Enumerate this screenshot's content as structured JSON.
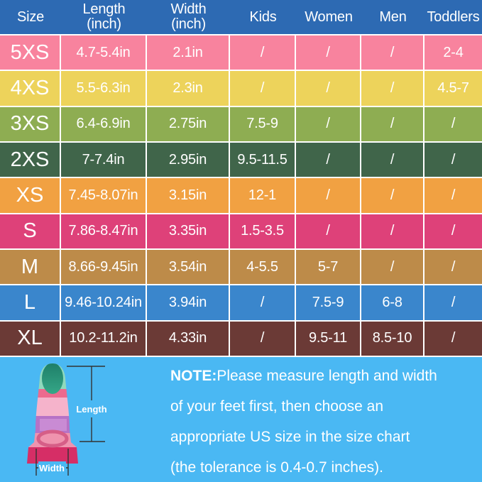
{
  "chart_data": {
    "type": "table",
    "columns": [
      "Size",
      "Length\n(inch)",
      "Width\n(inch)",
      "Kids",
      "Women",
      "Men",
      "Toddlers"
    ],
    "rows": [
      [
        "5XS",
        "4.7-5.4in",
        "2.1in",
        "/",
        "/",
        "/",
        "2-4"
      ],
      [
        "4XS",
        "5.5-6.3in",
        "2.3in",
        "/",
        "/",
        "/",
        "4.5-7"
      ],
      [
        "3XS",
        "6.4-6.9in",
        "2.75in",
        "7.5-9",
        "/",
        "/",
        "/"
      ],
      [
        "2XS",
        "7-7.4in",
        "2.95in",
        "9.5-11.5",
        "/",
        "/",
        "/"
      ],
      [
        "XS",
        "7.45-8.07in",
        "3.15in",
        "12-1",
        "/",
        "/",
        "/"
      ],
      [
        "S",
        "7.86-8.47in",
        "3.35in",
        "1.5-3.5",
        "/",
        "/",
        "/"
      ],
      [
        "M",
        "8.66-9.45in",
        "3.54in",
        "4-5.5",
        "5-7",
        "/",
        "/"
      ],
      [
        "L",
        "9.46-10.24in",
        "3.94in",
        "/",
        "7.5-9",
        "6-8",
        "/"
      ],
      [
        "XL",
        "10.2-11.2in",
        "4.33in",
        "/",
        "9.5-11",
        "8.5-10",
        "/"
      ]
    ]
  },
  "row_colors": [
    "#f8839e",
    "#edd35b",
    "#8ead52",
    "#40654a",
    "#f1a142",
    "#de4179",
    "#bd8b49",
    "#3a86cc",
    "#6b3a36"
  ],
  "colors": {
    "header_bg": "#2d6ab3",
    "grid_line": "#ffffff",
    "bottom_bg": "#4ab8f3",
    "text": "#ffffff"
  },
  "fin": {
    "length_label": "Length",
    "width_label": "Width"
  },
  "note": {
    "prefix": "NOTE:",
    "body": "Please measure length and width\nof your feet first, then choose an\nappropriate US size in the size chart\n(the tolerance is 0.4-0.7 inches)."
  }
}
